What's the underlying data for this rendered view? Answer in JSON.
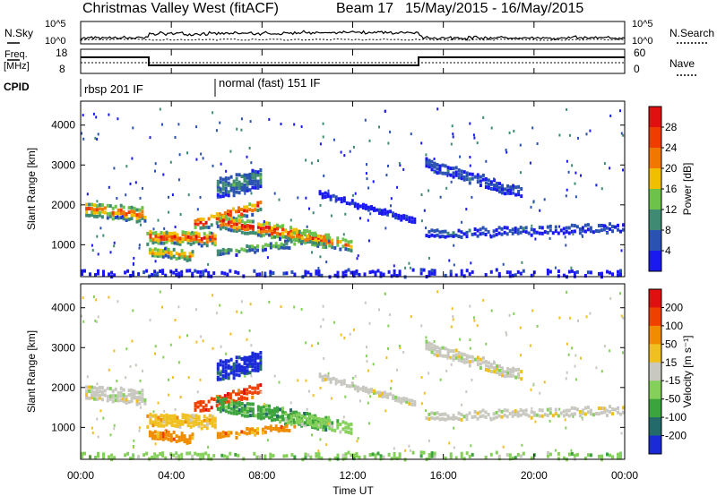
{
  "header": {
    "title": "Christmas Valley West (fitACF)",
    "beam": "Beam 17",
    "date_range": "15/May/2015 - 16/May/2015"
  },
  "top_panels": {
    "nsky_label": "N.Sky",
    "nsky_ticks": [
      "10^5",
      "10^0"
    ],
    "nsearch_label": "N.Search",
    "nsearch_ticks": [
      "10^5",
      "10^0"
    ],
    "freq_label_1": "Freq.",
    "freq_label_2": "[MHz]",
    "freq_ticks": [
      "18",
      "8"
    ],
    "nave_label": "Nave",
    "nave_ticks": [
      "60",
      "0"
    ],
    "cpid_label": "CPID",
    "cpid_modes": [
      {
        "label": "rbsp 201 IF",
        "start_h": 0
      },
      {
        "label": "normal (fast) 151 IF",
        "start_h": 6
      }
    ]
  },
  "chart_data": [
    {
      "type": "heatmap",
      "name": "power",
      "ylabel": "Slant Range [km]",
      "y_ticks": [
        "1000",
        "2000",
        "3000",
        "4000"
      ],
      "ylim": [
        200,
        4600
      ],
      "colorbar_label": "Power [dB]",
      "colorbar_ticks": [
        "4",
        "8",
        "12",
        "16",
        "20",
        "24",
        "28"
      ],
      "colors": [
        "#1a1af0",
        "#2a52b0",
        "#3e8a72",
        "#6cc24a",
        "#f0c000",
        "#f07800",
        "#f03c00",
        "#e01010"
      ]
    },
    {
      "type": "heatmap",
      "name": "velocity",
      "ylabel": "Slant Range [km]",
      "y_ticks": [
        "1000",
        "2000",
        "3000",
        "4000"
      ],
      "ylim": [
        200,
        4600
      ],
      "colorbar_label": "Velocity [m s⁻¹]",
      "colorbar_ticks": [
        "200",
        "100",
        "50",
        "15",
        "-15",
        "-50",
        "-100",
        "-200"
      ],
      "colors": [
        "#1a2ad8",
        "#236a6a",
        "#3ca43c",
        "#84d05a",
        "#c8c8c0",
        "#f0c020",
        "#f08c00",
        "#f04000",
        "#e01010"
      ]
    }
  ],
  "x_axis": {
    "label": "Time UT",
    "ticks": [
      "00:00",
      "04:00",
      "08:00",
      "12:00",
      "16:00",
      "20:00",
      "00:00"
    ],
    "range_h": [
      0,
      24
    ]
  }
}
